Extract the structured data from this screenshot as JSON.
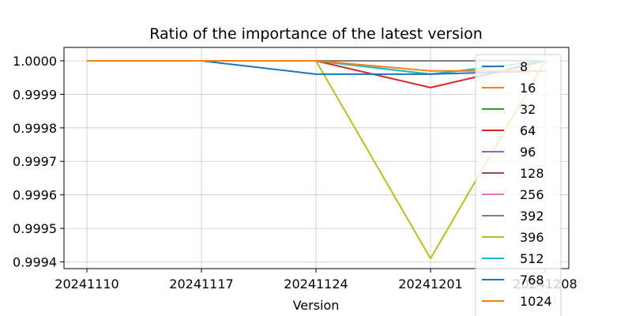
{
  "chart_data": {
    "type": "line",
    "title": "Ratio of the importance of the latest version",
    "xlabel": "Version",
    "ylabel": "",
    "categories": [
      "20241110",
      "20241117",
      "20241124",
      "20241201",
      "20241208"
    ],
    "ylim": [
      0.99938,
      1.00004
    ],
    "yticks": [
      "0.9994",
      "0.9995",
      "0.9996",
      "0.9997",
      "0.9998",
      "0.9999",
      "1.0000"
    ],
    "ytick_values": [
      0.9994,
      0.9995,
      0.9996,
      0.9997,
      0.9998,
      0.9999,
      1.0
    ],
    "grid": true,
    "legend": "right, overflowing bottom",
    "series": [
      {
        "name": "8",
        "color": "#1f77b4",
        "values": [
          1.0,
          1.0,
          1.0,
          1.0,
          1.0
        ]
      },
      {
        "name": "16",
        "color": "#ff7f0e",
        "values": [
          1.0,
          1.0,
          1.0,
          1.0,
          1.0
        ]
      },
      {
        "name": "32",
        "color": "#2ca02c",
        "values": [
          1.0,
          1.0,
          1.0,
          0.99996,
          1.0
        ]
      },
      {
        "name": "64",
        "color": "#d62728",
        "values": [
          1.0,
          1.0,
          1.0,
          0.99992,
          1.0
        ]
      },
      {
        "name": "96",
        "color": "#9467bd",
        "values": [
          1.0,
          1.0,
          1.0,
          1.0,
          1.0
        ]
      },
      {
        "name": "128",
        "color": "#8c564b",
        "values": [
          1.0,
          1.0,
          1.0,
          1.0,
          1.0
        ]
      },
      {
        "name": "256",
        "color": "#e377c2",
        "values": [
          1.0,
          1.0,
          1.0,
          1.0,
          1.0
        ]
      },
      {
        "name": "392",
        "color": "#7f7f7f",
        "values": [
          1.0,
          1.0,
          1.0,
          1.0,
          1.0
        ]
      },
      {
        "name": "396",
        "color": "#bcbd22",
        "values": [
          1.0,
          1.0,
          1.0,
          0.99941,
          1.0
        ]
      },
      {
        "name": "512",
        "color": "#17becf",
        "values": [
          1.0,
          1.0,
          1.0,
          0.99996,
          1.0
        ]
      },
      {
        "name": "768",
        "color": "#1f77b4",
        "values": [
          1.0,
          1.0,
          0.99996,
          0.99996,
          0.99997
        ]
      },
      {
        "name": "1024",
        "color": "#ff7f0e",
        "values": [
          1.0,
          1.0,
          1.0,
          0.99997,
          0.99997
        ]
      }
    ]
  }
}
